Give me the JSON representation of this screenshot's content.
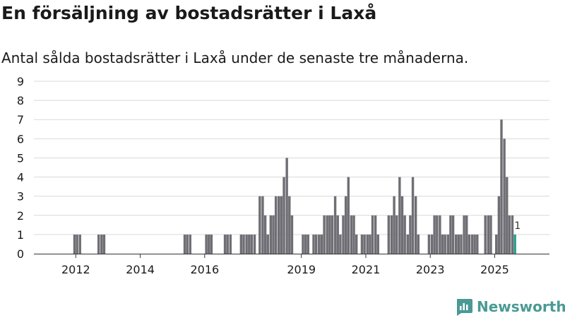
{
  "title": "En försäljning av bostadsrätter i Laxå",
  "subtitle": "Antal sålda bostadsrätter i Laxå under de senaste tre månaderna.",
  "brand": {
    "name": "Newsworthy",
    "icon": "newsworthy-logo-icon"
  },
  "colors": {
    "bar": "#6f6e74",
    "highlight": "#2a9d8f",
    "grid": "#d9d9d9",
    "brand": "#4a9a94"
  },
  "chart_data": {
    "type": "bar",
    "title": "En försäljning av bostadsrätter i Laxå",
    "xlabel": "",
    "ylabel": "",
    "ylim": [
      0,
      9
    ],
    "yticks": [
      "0",
      "1",
      "2",
      "3",
      "4",
      "5",
      "6",
      "7",
      "8",
      "9"
    ],
    "xticks": [
      {
        "label": "2012",
        "x": 2012.0
      },
      {
        "label": "2014",
        "x": 2014.0
      },
      {
        "label": "2016",
        "x": 2016.0
      },
      {
        "label": "2019",
        "x": 2019.0
      },
      {
        "label": "2021",
        "x": 2021.0
      },
      {
        "label": "2023",
        "x": 2023.0
      },
      {
        "label": "2025",
        "x": 2025.0
      }
    ],
    "xlim": [
      2010.7,
      2026.7
    ],
    "bar_width_years": 0.075,
    "values": [
      {
        "x": 2011.96,
        "v": 1
      },
      {
        "x": 2012.04,
        "v": 1
      },
      {
        "x": 2012.13,
        "v": 1
      },
      {
        "x": 2012.71,
        "v": 1
      },
      {
        "x": 2012.8,
        "v": 1
      },
      {
        "x": 2012.88,
        "v": 1
      },
      {
        "x": 2015.38,
        "v": 1
      },
      {
        "x": 2015.46,
        "v": 1
      },
      {
        "x": 2015.55,
        "v": 1
      },
      {
        "x": 2016.05,
        "v": 1
      },
      {
        "x": 2016.13,
        "v": 1
      },
      {
        "x": 2016.21,
        "v": 1
      },
      {
        "x": 2016.63,
        "v": 1
      },
      {
        "x": 2016.71,
        "v": 1
      },
      {
        "x": 2016.8,
        "v": 1
      },
      {
        "x": 2017.13,
        "v": 1
      },
      {
        "x": 2017.21,
        "v": 1
      },
      {
        "x": 2017.3,
        "v": 1
      },
      {
        "x": 2017.38,
        "v": 1
      },
      {
        "x": 2017.46,
        "v": 1
      },
      {
        "x": 2017.55,
        "v": 1
      },
      {
        "x": 2017.71,
        "v": 3
      },
      {
        "x": 2017.8,
        "v": 3
      },
      {
        "x": 2017.88,
        "v": 2
      },
      {
        "x": 2017.96,
        "v": 1
      },
      {
        "x": 2018.05,
        "v": 2
      },
      {
        "x": 2018.13,
        "v": 2
      },
      {
        "x": 2018.21,
        "v": 3
      },
      {
        "x": 2018.3,
        "v": 3
      },
      {
        "x": 2018.38,
        "v": 3
      },
      {
        "x": 2018.46,
        "v": 4
      },
      {
        "x": 2018.55,
        "v": 5
      },
      {
        "x": 2018.63,
        "v": 3
      },
      {
        "x": 2018.71,
        "v": 2
      },
      {
        "x": 2019.05,
        "v": 1
      },
      {
        "x": 2019.13,
        "v": 1
      },
      {
        "x": 2019.21,
        "v": 1
      },
      {
        "x": 2019.38,
        "v": 1
      },
      {
        "x": 2019.46,
        "v": 1
      },
      {
        "x": 2019.55,
        "v": 1
      },
      {
        "x": 2019.63,
        "v": 1
      },
      {
        "x": 2019.71,
        "v": 2
      },
      {
        "x": 2019.8,
        "v": 2
      },
      {
        "x": 2019.88,
        "v": 2
      },
      {
        "x": 2019.96,
        "v": 2
      },
      {
        "x": 2020.05,
        "v": 3
      },
      {
        "x": 2020.13,
        "v": 2
      },
      {
        "x": 2020.21,
        "v": 1
      },
      {
        "x": 2020.3,
        "v": 2
      },
      {
        "x": 2020.38,
        "v": 3
      },
      {
        "x": 2020.46,
        "v": 4
      },
      {
        "x": 2020.55,
        "v": 2
      },
      {
        "x": 2020.63,
        "v": 2
      },
      {
        "x": 2020.71,
        "v": 1
      },
      {
        "x": 2020.88,
        "v": 1
      },
      {
        "x": 2020.96,
        "v": 1
      },
      {
        "x": 2021.05,
        "v": 1
      },
      {
        "x": 2021.13,
        "v": 1
      },
      {
        "x": 2021.21,
        "v": 2
      },
      {
        "x": 2021.3,
        "v": 2
      },
      {
        "x": 2021.38,
        "v": 1
      },
      {
        "x": 2021.71,
        "v": 2
      },
      {
        "x": 2021.8,
        "v": 2
      },
      {
        "x": 2021.88,
        "v": 3
      },
      {
        "x": 2021.96,
        "v": 2
      },
      {
        "x": 2022.05,
        "v": 4
      },
      {
        "x": 2022.13,
        "v": 3
      },
      {
        "x": 2022.21,
        "v": 2
      },
      {
        "x": 2022.3,
        "v": 1
      },
      {
        "x": 2022.38,
        "v": 2
      },
      {
        "x": 2022.46,
        "v": 4
      },
      {
        "x": 2022.55,
        "v": 3
      },
      {
        "x": 2022.63,
        "v": 1
      },
      {
        "x": 2022.96,
        "v": 1
      },
      {
        "x": 2023.05,
        "v": 1
      },
      {
        "x": 2023.13,
        "v": 2
      },
      {
        "x": 2023.21,
        "v": 2
      },
      {
        "x": 2023.3,
        "v": 2
      },
      {
        "x": 2023.38,
        "v": 1
      },
      {
        "x": 2023.46,
        "v": 1
      },
      {
        "x": 2023.55,
        "v": 1
      },
      {
        "x": 2023.63,
        "v": 2
      },
      {
        "x": 2023.71,
        "v": 2
      },
      {
        "x": 2023.8,
        "v": 1
      },
      {
        "x": 2023.88,
        "v": 1
      },
      {
        "x": 2023.96,
        "v": 1
      },
      {
        "x": 2024.05,
        "v": 2
      },
      {
        "x": 2024.13,
        "v": 2
      },
      {
        "x": 2024.21,
        "v": 1
      },
      {
        "x": 2024.3,
        "v": 1
      },
      {
        "x": 2024.38,
        "v": 1
      },
      {
        "x": 2024.46,
        "v": 1
      },
      {
        "x": 2024.71,
        "v": 2
      },
      {
        "x": 2024.8,
        "v": 2
      },
      {
        "x": 2024.88,
        "v": 2
      },
      {
        "x": 2025.05,
        "v": 1
      },
      {
        "x": 2025.13,
        "v": 3
      },
      {
        "x": 2025.21,
        "v": 7
      },
      {
        "x": 2025.3,
        "v": 6
      },
      {
        "x": 2025.38,
        "v": 4
      },
      {
        "x": 2025.46,
        "v": 2
      },
      {
        "x": 2025.55,
        "v": 2
      },
      {
        "x": 2025.63,
        "v": 1,
        "highlight": true,
        "label": "1"
      }
    ]
  }
}
